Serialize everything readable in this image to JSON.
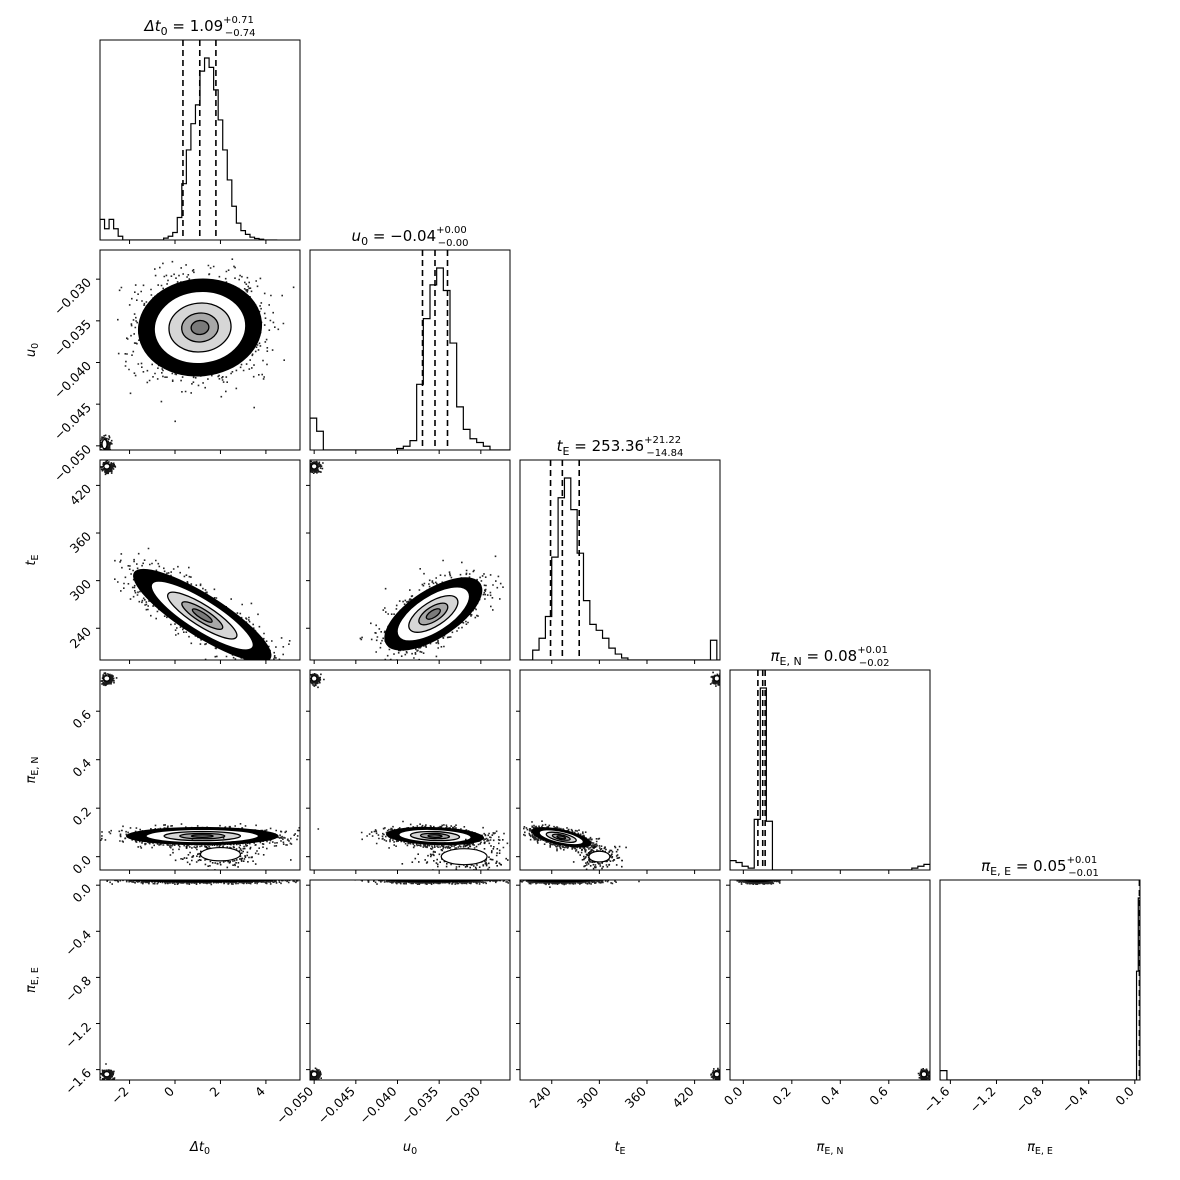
{
  "chart_data": {
    "type": "corner",
    "colors": {
      "ink": "#000000",
      "density": "#000000",
      "contour_fill": [
        "#ffffff",
        "#d6d6d6",
        "#a8a8a8",
        "#7a7a7a",
        "#4c4c4c"
      ]
    },
    "grid": false,
    "parameters": [
      {
        "key": "dt0",
        "label_main": "Δt",
        "label_sub": "0",
        "title_prefix": "Δt",
        "title_prefix_sub": "0",
        "title_value": "1.09",
        "title_plus": "+0.71",
        "title_minus": "−0.74",
        "range": [
          -3.3,
          5.5
        ],
        "ticks": [
          -2,
          0,
          2,
          4
        ],
        "tick_labels": [
          "−2",
          "0",
          "2",
          "4"
        ],
        "quantiles": [
          0.35,
          1.09,
          1.8
        ]
      },
      {
        "key": "u0",
        "label_main": "u",
        "label_sub": "0",
        "title_prefix": "u",
        "title_prefix_sub": "0",
        "title_value": "−0.04",
        "title_plus": "+0.00",
        "title_minus": "−0.00",
        "range": [
          -0.0505,
          -0.0265
        ],
        "ticks": [
          -0.05,
          -0.045,
          -0.04,
          -0.035,
          -0.03
        ],
        "tick_labels": [
          "−0.050",
          "−0.045",
          "−0.040",
          "−0.035",
          "−0.030"
        ],
        "quantiles": [
          -0.037,
          -0.0355,
          -0.034
        ]
      },
      {
        "key": "tE",
        "label_main": "t",
        "label_sub": "E",
        "title_prefix": "t",
        "title_prefix_sub": "E",
        "title_value": "253.36",
        "title_plus": "+21.22",
        "title_minus": "−14.84",
        "range": [
          200,
          452
        ],
        "ticks": [
          240,
          300,
          360,
          420
        ],
        "tick_labels": [
          "240",
          "300",
          "360",
          "420"
        ],
        "quantiles": [
          238.5,
          253.36,
          274.6
        ]
      },
      {
        "key": "piEN",
        "label_main": "π",
        "label_sub": "E, N",
        "title_prefix": "π",
        "title_prefix_sub": "E, N",
        "title_value": "0.08",
        "title_plus": "+0.01",
        "title_minus": "−0.02",
        "range": [
          -0.055,
          0.77
        ],
        "ticks": [
          0.0,
          0.2,
          0.4,
          0.6
        ],
        "tick_labels": [
          "0.0",
          "0.2",
          "0.4",
          "0.6"
        ],
        "quantiles": [
          0.06,
          0.08,
          0.09
        ]
      },
      {
        "key": "piEE",
        "label_main": "π",
        "label_sub": "E, E",
        "title_prefix": "π",
        "title_prefix_sub": "E, E",
        "title_value": "0.05",
        "title_plus": "+0.01",
        "title_minus": "−0.01",
        "range": [
          -1.69,
          0.045
        ],
        "ticks": [
          -1.6,
          -1.2,
          -0.8,
          -0.4,
          0.0
        ],
        "tick_labels": [
          "−1.6",
          "−1.2",
          "−0.8",
          "−0.4",
          "0.0"
        ],
        "quantiles": [
          0.04,
          0.05,
          0.06
        ]
      }
    ],
    "histograms": [
      {
        "param": 0,
        "edges": [
          -3.3,
          -3.1,
          -2.9,
          -2.7,
          -2.5,
          -2.3,
          -2.1,
          -1.9,
          -1.7,
          -1.5,
          -1.3,
          -1.1,
          -0.9,
          -0.7,
          -0.5,
          -0.3,
          -0.1,
          0.1,
          0.3,
          0.5,
          0.7,
          0.9,
          1.1,
          1.3,
          1.5,
          1.7,
          1.9,
          2.1,
          2.3,
          2.5,
          2.7,
          2.9,
          3.1,
          3.3,
          3.5,
          3.7,
          3.9,
          4.1,
          4.3,
          4.5
        ],
        "counts": [
          0.11,
          0.06,
          0.11,
          0.06,
          0.02,
          0.0,
          0.0,
          0.0,
          0.0,
          0.0,
          0.0,
          0.0,
          0.0,
          0.0,
          0.01,
          0.02,
          0.04,
          0.12,
          0.3,
          0.48,
          0.62,
          0.72,
          0.9,
          0.97,
          0.92,
          0.8,
          0.64,
          0.48,
          0.32,
          0.18,
          0.09,
          0.05,
          0.03,
          0.015,
          0.008,
          0.004,
          0.0,
          0.0,
          0.0
        ]
      },
      {
        "param": 1,
        "edges": [
          -0.0505,
          -0.0497,
          -0.0489,
          -0.0481,
          -0.0473,
          -0.0465,
          -0.0457,
          -0.0449,
          -0.0441,
          -0.0433,
          -0.0425,
          -0.0417,
          -0.0409,
          -0.0401,
          -0.0393,
          -0.0385,
          -0.0377,
          -0.0369,
          -0.0361,
          -0.0353,
          -0.0345,
          -0.0337,
          -0.0329,
          -0.0321,
          -0.0313,
          -0.0305,
          -0.0297,
          -0.0289,
          -0.0281,
          -0.0273,
          -0.0265
        ],
        "counts": [
          0.17,
          0.1,
          0.0,
          0.0,
          0.0,
          0.0,
          0.0,
          0.0,
          0.0,
          0.0,
          0.0,
          0.0,
          0.0,
          0.008,
          0.02,
          0.05,
          0.35,
          0.7,
          0.88,
          0.97,
          0.85,
          0.57,
          0.23,
          0.11,
          0.06,
          0.04,
          0.02,
          0.0,
          0.0,
          0.0
        ]
      },
      {
        "param": 2,
        "edges": [
          200,
          208,
          216,
          224,
          232,
          240,
          248,
          256,
          264,
          272,
          280,
          288,
          296,
          304,
          312,
          320,
          328,
          336,
          344,
          352,
          360,
          368,
          376,
          384,
          392,
          400,
          408,
          416,
          424,
          432,
          440,
          448,
          452
        ],
        "counts": [
          0.0,
          0.0,
          0.05,
          0.11,
          0.22,
          0.52,
          0.82,
          0.92,
          0.76,
          0.54,
          0.3,
          0.18,
          0.15,
          0.11,
          0.06,
          0.03,
          0.01,
          0.0,
          0.0,
          0.0,
          0.0,
          0.0,
          0.0,
          0.0,
          0.0,
          0.0,
          0.0,
          0.0,
          0.0,
          0.0,
          0.1,
          0.0
        ]
      },
      {
        "param": 3,
        "edges": [
          -0.055,
          -0.03,
          -0.005,
          0.02,
          0.045,
          0.07,
          0.095,
          0.12,
          0.145,
          0.17,
          0.195,
          0.22,
          0.245,
          0.27,
          0.295,
          0.32,
          0.345,
          0.37,
          0.395,
          0.42,
          0.445,
          0.47,
          0.495,
          0.52,
          0.545,
          0.57,
          0.595,
          0.62,
          0.645,
          0.67,
          0.695,
          0.72,
          0.745,
          0.77
        ],
        "counts": [
          0.05,
          0.04,
          0.02,
          0.01,
          0.27,
          0.97,
          0.26,
          0.0,
          0.0,
          0.0,
          0.0,
          0.0,
          0.0,
          0.0,
          0.0,
          0.0,
          0.0,
          0.0,
          0.0,
          0.0,
          0.0,
          0.0,
          0.0,
          0.0,
          0.0,
          0.0,
          0.0,
          0.0,
          0.0,
          0.0,
          0.01,
          0.02,
          0.03
        ]
      },
      {
        "param": 4,
        "edges": [
          -1.69,
          -1.63,
          -1.57,
          -1.51,
          -1.45,
          -1.39,
          -1.33,
          -1.27,
          -1.21,
          -1.15,
          -1.09,
          -1.03,
          -0.97,
          -0.91,
          -0.85,
          -0.79,
          -0.73,
          -0.67,
          -0.61,
          -0.55,
          -0.49,
          -0.43,
          -0.37,
          -0.31,
          -0.25,
          -0.19,
          -0.13,
          -0.07,
          -0.01,
          0.015,
          0.03,
          0.045
        ],
        "counts": [
          0.05,
          0.0,
          0.0,
          0.0,
          0.0,
          0.0,
          0.0,
          0.0,
          0.0,
          0.0,
          0.0,
          0.0,
          0.0,
          0.0,
          0.0,
          0.0,
          0.0,
          0.0,
          0.0,
          0.0,
          0.0,
          0.0,
          0.0,
          0.0,
          0.0,
          0.0,
          0.0,
          0.0,
          0.0,
          0.58,
          0.97
        ]
      }
    ],
    "pairs": [
      {
        "x": 0,
        "y": 1,
        "center": [
          1.1,
          -0.0358
        ],
        "spread": [
          1.3,
          0.0028
        ],
        "rho": 0.05,
        "clumps": [
          {
            "x": -3.1,
            "y": -0.0498,
            "sx": 0.1,
            "sy": 0.0005
          }
        ]
      },
      {
        "x": 0,
        "y": 2,
        "center": [
          1.2,
          256
        ],
        "spread": [
          1.45,
          28
        ],
        "rho": -0.85,
        "clumps": [
          {
            "x": -3.0,
            "y": 444,
            "sx": 0.12,
            "sy": 3
          }
        ]
      },
      {
        "x": 0,
        "y": 3,
        "center": [
          1.2,
          0.085
        ],
        "spread": [
          1.6,
          0.018
        ],
        "rho": 0.0,
        "clumps": [
          {
            "x": 2.0,
            "y": 0.01,
            "sx": 0.8,
            "sy": 0.025
          },
          {
            "x": -3.0,
            "y": 0.735,
            "sx": 0.12,
            "sy": 0.01
          }
        ]
      },
      {
        "x": 0,
        "y": 4,
        "center": [
          1.2,
          0.05
        ],
        "spread": [
          1.7,
          0.012
        ],
        "rho": 0.0,
        "clumps": [
          {
            "x": -3.0,
            "y": -1.64,
            "sx": 0.12,
            "sy": 0.02
          }
        ]
      },
      {
        "x": 1,
        "y": 2,
        "center": [
          -0.0357,
          258
        ],
        "spread": [
          0.0028,
          22
        ],
        "rho": 0.65,
        "clumps": [
          {
            "x": -0.05,
            "y": 444,
            "sx": 0.0003,
            "sy": 3
          }
        ]
      },
      {
        "x": 1,
        "y": 3,
        "center": [
          -0.0355,
          0.085
        ],
        "spread": [
          0.0028,
          0.018
        ],
        "rho": -0.2,
        "clumps": [
          {
            "x": -0.032,
            "y": 0.0,
            "sx": 0.0025,
            "sy": 0.03
          },
          {
            "x": -0.05,
            "y": 0.735,
            "sx": 0.0003,
            "sy": 0.01
          }
        ]
      },
      {
        "x": 1,
        "y": 4,
        "center": [
          -0.0355,
          0.05
        ],
        "spread": [
          0.003,
          0.012
        ],
        "rho": 0.0,
        "clumps": [
          {
            "x": -0.05,
            "y": -1.64,
            "sx": 0.0003,
            "sy": 0.02
          }
        ]
      },
      {
        "x": 2,
        "y": 3,
        "center": [
          252,
          0.08
        ],
        "spread": [
          18,
          0.02
        ],
        "rho": -0.6,
        "clumps": [
          {
            "x": 300,
            "y": 0.0,
            "sx": 12,
            "sy": 0.02
          },
          {
            "x": 448,
            "y": 0.735,
            "sx": 3,
            "sy": 0.01
          }
        ]
      },
      {
        "x": 2,
        "y": 4,
        "center": [
          250,
          0.05
        ],
        "spread": [
          22,
          0.012
        ],
        "rho": 0.0,
        "clumps": [
          {
            "x": 448,
            "y": -1.64,
            "sx": 3,
            "sy": 0.02
          }
        ]
      },
      {
        "x": 3,
        "y": 4,
        "center": [
          0.06,
          0.05
        ],
        "spread": [
          0.03,
          0.012
        ],
        "rho": 0.0,
        "clumps": [
          {
            "x": 0.745,
            "y": -1.64,
            "sx": 0.01,
            "sy": 0.02
          }
        ]
      }
    ]
  }
}
